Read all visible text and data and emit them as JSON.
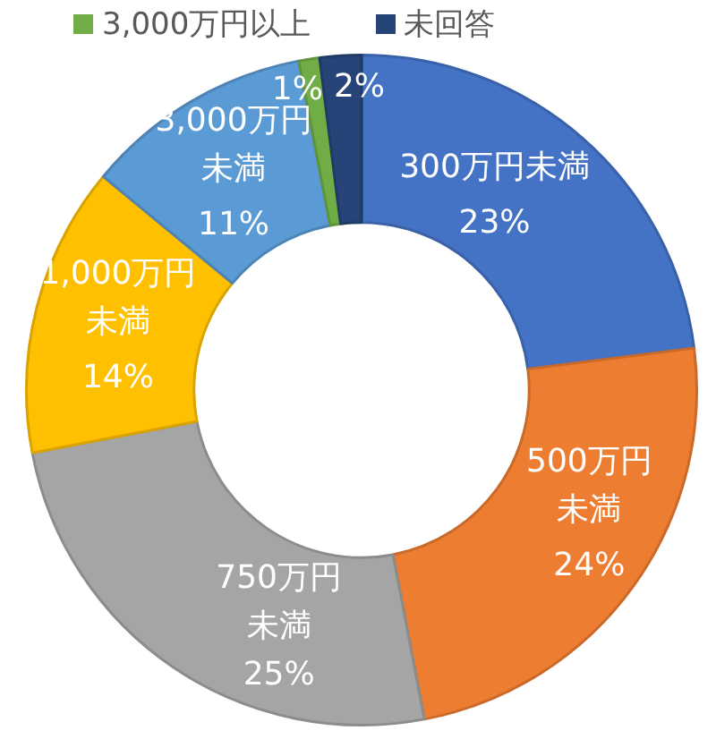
{
  "chart_data": {
    "type": "donut",
    "categories": [
      "300万円未満",
      "500万円未満",
      "750万円未満",
      "1,000万円未満",
      "3,000万円未満",
      "3,000万円以上",
      "未回答"
    ],
    "values": [
      23,
      24,
      25,
      14,
      11,
      1,
      2
    ],
    "colors": [
      "#4472c4",
      "#ed7d31",
      "#a5a5a5",
      "#ffc000",
      "#5b9bd5",
      "#70ad47",
      "#264478"
    ],
    "value_labels": [
      "23%",
      "24%",
      "25%",
      "14%",
      "11%",
      "1%",
      "2%"
    ],
    "legend": "top"
  }
}
